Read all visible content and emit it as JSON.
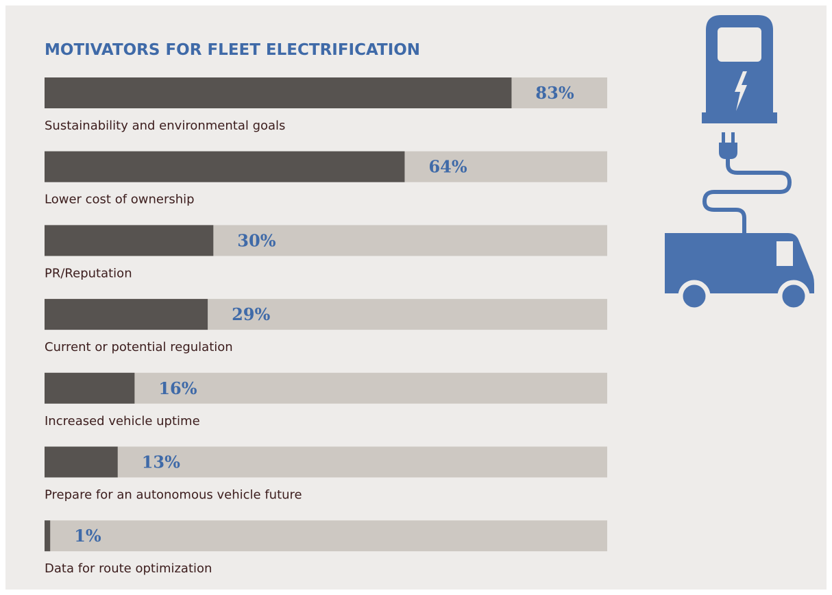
{
  "chart_data": {
    "type": "bar",
    "orientation": "horizontal",
    "title": "MOTIVATORS FOR FLEET ELECTRIFICATION",
    "categories": [
      "Sustainability and environmental goals",
      "Lower cost of ownership",
      "PR/Reputation",
      "Current or potential regulation",
      "Increased vehicle uptime",
      "Prepare for an autonomous vehicle future",
      "Data for route optimization"
    ],
    "values": [
      83,
      64,
      30,
      29,
      16,
      13,
      1
    ],
    "value_labels": [
      "83%",
      "64%",
      "30%",
      "29%",
      "16%",
      "13%",
      "1%"
    ],
    "xlim": [
      0,
      100
    ],
    "color": "#575350",
    "track_color": "#cdc8c2"
  }
}
